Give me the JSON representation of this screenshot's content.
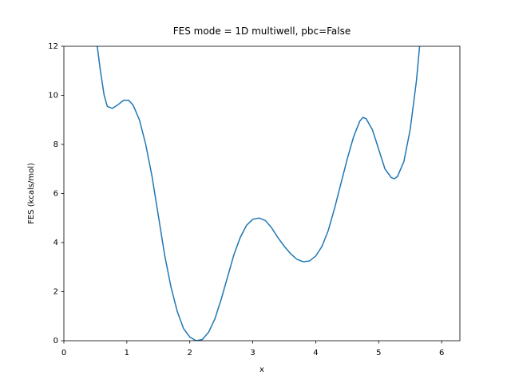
{
  "chart_data": {
    "type": "line",
    "title": "FES mode = 1D multiwell, pbc=False",
    "xlabel": "x",
    "ylabel": "FES (kcals/mol)",
    "x": [
      0.5,
      0.53,
      0.58,
      0.64,
      0.69,
      0.77,
      0.85,
      0.95,
      1.03,
      1.1,
      1.2,
      1.3,
      1.4,
      1.5,
      1.6,
      1.7,
      1.8,
      1.9,
      2.0,
      2.1,
      2.2,
      2.3,
      2.4,
      2.5,
      2.6,
      2.7,
      2.8,
      2.9,
      3.0,
      3.1,
      3.2,
      3.3,
      3.4,
      3.5,
      3.6,
      3.7,
      3.8,
      3.9,
      4.0,
      4.1,
      4.2,
      4.3,
      4.4,
      4.5,
      4.6,
      4.7,
      4.75,
      4.8,
      4.9,
      5.0,
      5.1,
      5.2,
      5.25,
      5.3,
      5.4,
      5.5,
      5.6,
      5.65,
      5.7
    ],
    "values": [
      13.2,
      12.0,
      11.0,
      10.0,
      9.55,
      9.47,
      9.6,
      9.8,
      9.8,
      9.6,
      9.0,
      8.0,
      6.7,
      5.1,
      3.5,
      2.2,
      1.2,
      0.5,
      0.15,
      0.0,
      0.05,
      0.35,
      0.9,
      1.7,
      2.6,
      3.5,
      4.2,
      4.7,
      4.95,
      5.0,
      4.9,
      4.6,
      4.2,
      3.85,
      3.55,
      3.32,
      3.22,
      3.25,
      3.45,
      3.85,
      4.5,
      5.4,
      6.4,
      7.4,
      8.3,
      8.95,
      9.1,
      9.05,
      8.6,
      7.8,
      7.0,
      6.65,
      6.6,
      6.7,
      7.3,
      8.6,
      10.6,
      12.0,
      13.0
    ],
    "color": "#1f77b4",
    "xlim": [
      0,
      6.29
    ],
    "ylim": [
      0,
      12
    ],
    "xticks": [
      0,
      1,
      2,
      3,
      4,
      5,
      6
    ],
    "yticks": [
      0,
      2,
      4,
      6,
      8,
      10,
      12
    ]
  }
}
